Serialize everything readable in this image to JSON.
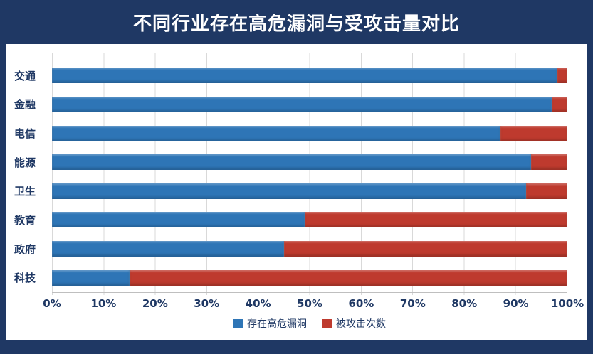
{
  "chart_data": {
    "type": "bar",
    "orientation": "horizontal-stacked-100",
    "title": "不同行业存在高危漏洞与受攻击量对比",
    "categories": [
      "交通",
      "金融",
      "电信",
      "能源",
      "卫生",
      "教育",
      "政府",
      "科技"
    ],
    "series": [
      {
        "name": "存在高危漏洞",
        "color": "#2E75B6",
        "values": [
          98,
          97,
          87,
          93,
          92,
          49,
          45,
          15
        ]
      },
      {
        "name": "被攻击次数",
        "color": "#BE3A2E",
        "values": [
          2,
          3,
          13,
          7,
          8,
          51,
          55,
          85
        ]
      }
    ],
    "x_ticks": [
      "0%",
      "10%",
      "20%",
      "30%",
      "40%",
      "50%",
      "60%",
      "70%",
      "80%",
      "90%",
      "100%"
    ],
    "xlabel": "",
    "ylabel": "",
    "xlim": [
      0,
      100
    ],
    "grid": "vertical",
    "legend_position": "bottom"
  },
  "colors": {
    "frame": "#1F3864",
    "background": "#ffffff",
    "gridline": "#d9d9d9",
    "label": "#1F3864"
  }
}
